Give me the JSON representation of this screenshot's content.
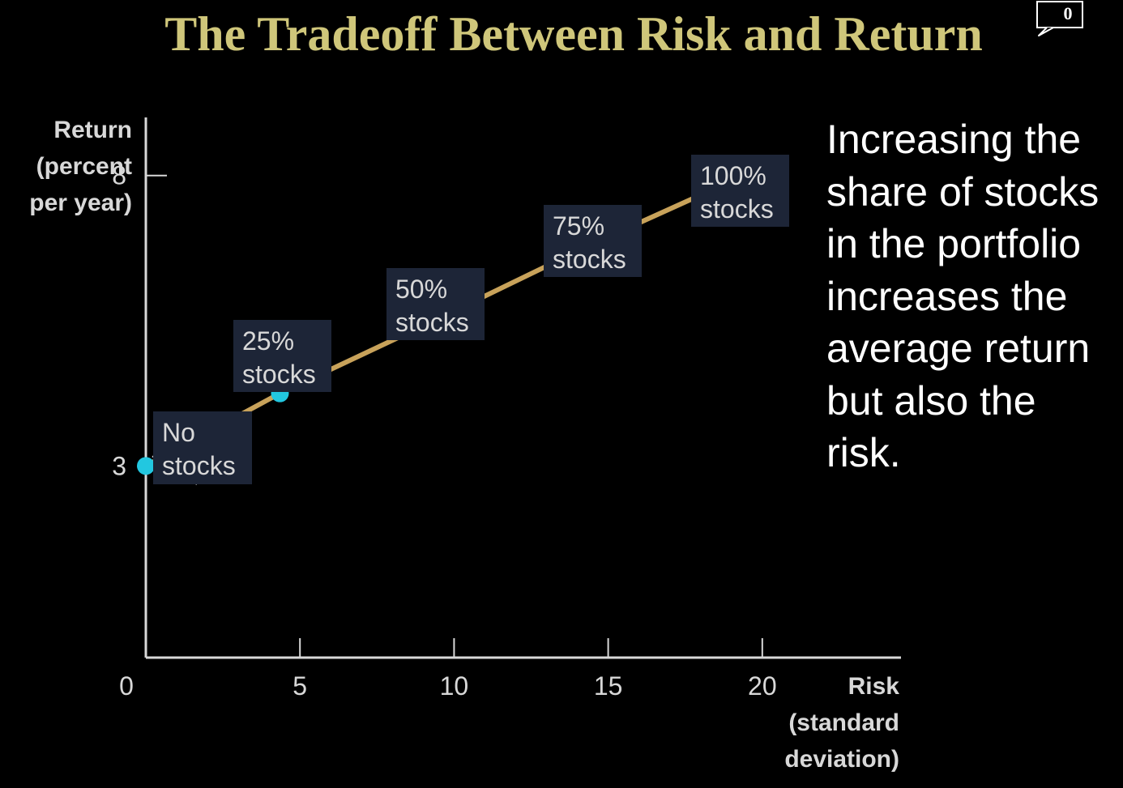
{
  "slide": {
    "title": "The Tradeoff Between Risk and Return",
    "comment_count": "0",
    "explanation": "Increasing the share of stocks in the portfolio increases the average return but also the risk."
  },
  "colors": {
    "background": "#000000",
    "title": "#cfc67a",
    "line": "#c8a25a",
    "point": "#22c7e0",
    "label_box": "#1d2537",
    "axis": "#d8d8d8",
    "text": "#ffffff"
  },
  "chart_data": {
    "type": "line",
    "xlabel": "Risk (standard deviation)",
    "ylabel": "Return (percent per year)",
    "xlabel_lines": [
      "Risk",
      "(standard",
      "deviation)"
    ],
    "ylabel_lines": [
      "Return",
      "(percent",
      "per year)"
    ],
    "xlim": [
      0,
      24.5
    ],
    "ylim": [
      -0.3,
      9
    ],
    "x_ticks": [
      0,
      5,
      10,
      15,
      20
    ],
    "x_tick_labels": [
      "0",
      "5",
      "10",
      "15",
      "20"
    ],
    "y_ticks": [
      3,
      8
    ],
    "y_tick_labels": [
      "3",
      "8"
    ],
    "grid": false,
    "points": [
      {
        "x": 0,
        "y": 3,
        "label": [
          "No",
          "stocks"
        ]
      },
      {
        "x": 4.35,
        "y": 4.25,
        "label": [
          "25%",
          "stocks"
        ]
      },
      {
        "x": 9.35,
        "y": 5.5,
        "label": [
          "50%",
          "stocks"
        ]
      },
      {
        "x": 14.4,
        "y": 6.8,
        "label": [
          "75%",
          "stocks"
        ]
      },
      {
        "x": 19.4,
        "y": 8,
        "label": [
          "100%",
          "stocks"
        ]
      }
    ]
  }
}
